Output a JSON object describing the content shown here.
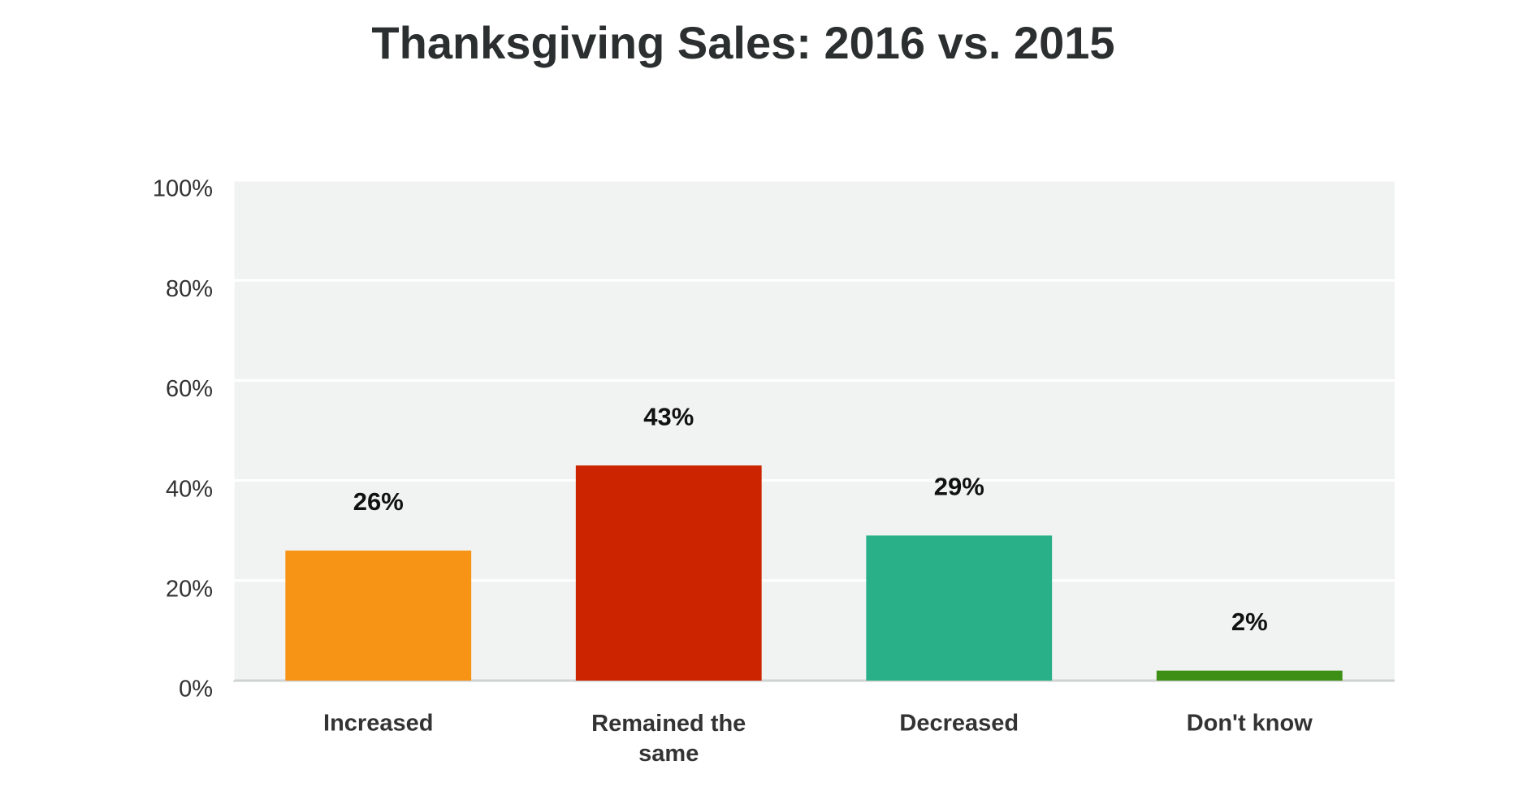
{
  "chart_data": {
    "type": "bar",
    "title": "Thanksgiving Sales: 2016 vs. 2015",
    "categories": [
      "Increased",
      "Remained the same",
      "Decreased",
      "Don't know"
    ],
    "values": [
      26,
      43,
      29,
      2
    ],
    "value_labels": [
      "26%",
      "43%",
      "29%",
      "2%"
    ],
    "colors": [
      "#f79315",
      "#cc2400",
      "#2ab089",
      "#3e8f16"
    ],
    "ylim": [
      0,
      100
    ],
    "yticks": [
      {
        "value": 0,
        "label": "0%"
      },
      {
        "value": 20,
        "label": "20%"
      },
      {
        "value": 40,
        "label": "40%"
      },
      {
        "value": 60,
        "label": "60%"
      },
      {
        "value": 80,
        "label": "80%"
      },
      {
        "value": 100,
        "label": "100%"
      }
    ],
    "grid": true
  }
}
